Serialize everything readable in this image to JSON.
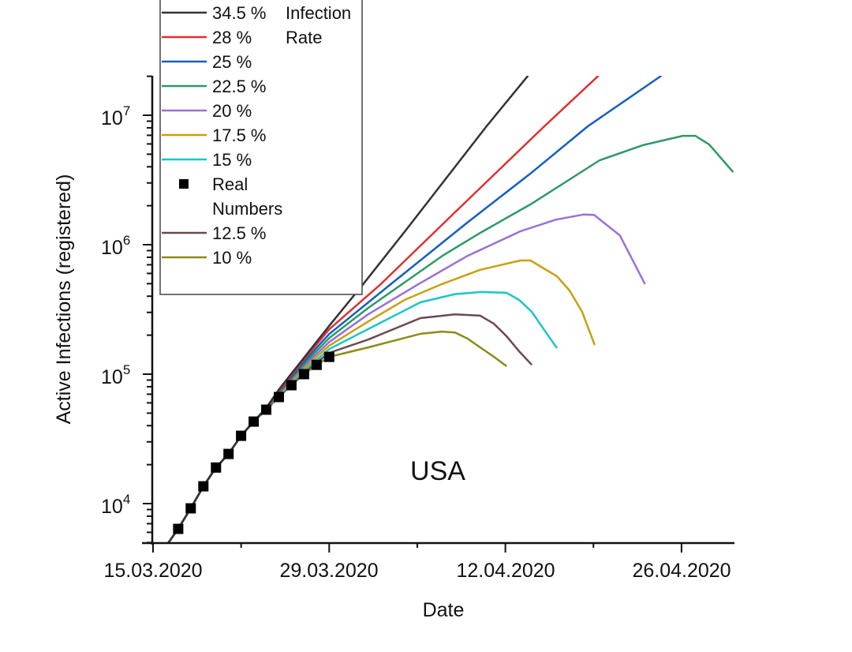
{
  "chart_data": {
    "type": "line",
    "title": "",
    "annotation": "USA",
    "xlabel": "Date",
    "ylabel": "Active Infections (registered)",
    "yscale": "log",
    "ylim": [
      5000,
      20000000
    ],
    "x_start_date": "15.03.2020",
    "x_unit": "days since 15.03.2020",
    "xlim": [
      0,
      46
    ],
    "x_major_ticks": [
      {
        "day": 0,
        "label": "15.03.2020"
      },
      {
        "day": 14,
        "label": "29.03.2020"
      },
      {
        "day": 28,
        "label": "12.04.2020"
      },
      {
        "day": 42,
        "label": "26.04.2020"
      }
    ],
    "x_minor_tick_days": [
      7,
      21,
      35
    ],
    "y_major_ticks": [
      {
        "value": 10000,
        "base": "10",
        "exp": "4"
      },
      {
        "value": 100000,
        "base": "10",
        "exp": "5"
      },
      {
        "value": 1000000,
        "base": "10",
        "exp": "6"
      },
      {
        "value": 10000000,
        "base": "10",
        "exp": "7"
      }
    ],
    "grid": false,
    "legend": {
      "placement": "top-left",
      "title": [
        "Infection",
        "Rate"
      ],
      "entries": [
        {
          "label": "34.5 %",
          "kind": "line",
          "color": "#333333"
        },
        {
          "label": "28 %",
          "kind": "line",
          "color": "#E03030"
        },
        {
          "label": "25 %",
          "kind": "line",
          "color": "#1560BD"
        },
        {
          "label": "22.5 %",
          "kind": "line",
          "color": "#2E9A63"
        },
        {
          "label": "20 %",
          "kind": "line",
          "color": "#9A6FD8"
        },
        {
          "label": "17.5 %",
          "kind": "line",
          "color": "#C9A010"
        },
        {
          "label": "15 %",
          "kind": "line",
          "color": "#1AC5C8"
        },
        {
          "label": "Real",
          "label2": "Numbers",
          "kind": "marker",
          "color": "#000000"
        },
        {
          "label": "12.5 %",
          "kind": "line",
          "color": "#6B4A4E"
        },
        {
          "label": "10 %",
          "kind": "line",
          "color": "#8C8C14"
        }
      ]
    },
    "series": [
      {
        "name": "10 %",
        "color": "#8C8C14",
        "points": [
          [
            1.2,
            4950
          ],
          [
            2,
            6400
          ],
          [
            3,
            9200
          ],
          [
            4,
            13600
          ],
          [
            5,
            19000
          ],
          [
            6,
            24200
          ],
          [
            7,
            33400
          ],
          [
            8,
            43000
          ],
          [
            9,
            53200
          ],
          [
            10,
            66600
          ],
          [
            11,
            82200
          ],
          [
            12,
            100000
          ],
          [
            13,
            118000
          ],
          [
            14,
            136000
          ],
          [
            17.1,
            161000
          ],
          [
            21.25,
            205000
          ],
          [
            22.95,
            213000
          ],
          [
            24.0,
            210000
          ],
          [
            25.0,
            188000
          ],
          [
            26.0,
            161000
          ],
          [
            27.1,
            136000
          ],
          [
            28.1,
            115000
          ]
        ]
      },
      {
        "name": "12.5 %",
        "color": "#6B4A4E",
        "points": [
          [
            1.2,
            4950
          ],
          [
            2,
            6400
          ],
          [
            3,
            9200
          ],
          [
            4,
            13600
          ],
          [
            5,
            19000
          ],
          [
            6,
            24200
          ],
          [
            7,
            33400
          ],
          [
            8,
            43000
          ],
          [
            9,
            53200
          ],
          [
            10,
            67000
          ],
          [
            11,
            83500
          ],
          [
            12,
            102000
          ],
          [
            13,
            123000
          ],
          [
            14,
            146000
          ],
          [
            17.1,
            185000
          ],
          [
            21.25,
            271000
          ],
          [
            24.0,
            290000
          ],
          [
            26.0,
            283000
          ],
          [
            27.1,
            245000
          ],
          [
            28.1,
            196000
          ],
          [
            29.1,
            150000
          ],
          [
            30.1,
            118000
          ]
        ]
      },
      {
        "name": "15 %",
        "color": "#1AC5C8",
        "points": [
          [
            1.2,
            4950
          ],
          [
            2,
            6400
          ],
          [
            3,
            9200
          ],
          [
            4,
            13600
          ],
          [
            5,
            19000
          ],
          [
            6,
            24200
          ],
          [
            7,
            33400
          ],
          [
            8,
            43000
          ],
          [
            9,
            53400
          ],
          [
            10,
            68000
          ],
          [
            11,
            85500
          ],
          [
            12,
            106000
          ],
          [
            13,
            129000
          ],
          [
            14,
            156000
          ],
          [
            17.1,
            223000
          ],
          [
            21.25,
            359000
          ],
          [
            24.0,
            415000
          ],
          [
            26.1,
            431000
          ],
          [
            28.1,
            425000
          ],
          [
            29.1,
            374000
          ],
          [
            30.1,
            303000
          ],
          [
            31.1,
            219000
          ],
          [
            32.1,
            159000
          ]
        ]
      },
      {
        "name": "17.5 %",
        "color": "#C9A010",
        "points": [
          [
            1.2,
            4950
          ],
          [
            2,
            6400
          ],
          [
            3,
            9200
          ],
          [
            4,
            13600
          ],
          [
            5,
            19000
          ],
          [
            6,
            24200
          ],
          [
            7,
            33400
          ],
          [
            8,
            43000
          ],
          [
            9,
            53600
          ],
          [
            10,
            69000
          ],
          [
            11,
            88000
          ],
          [
            12,
            110000
          ],
          [
            13,
            136000
          ],
          [
            14,
            166000
          ],
          [
            17.1,
            255000
          ],
          [
            20.0,
            375000
          ],
          [
            22.95,
            496000
          ],
          [
            26.0,
            640000
          ],
          [
            29.2,
            755000
          ],
          [
            30.0,
            755000
          ],
          [
            32.1,
            570000
          ],
          [
            33.1,
            443000
          ],
          [
            34.1,
            303000
          ],
          [
            35.1,
            168000
          ]
        ]
      },
      {
        "name": "20 %",
        "color": "#9A6FD8",
        "points": [
          [
            1.2,
            4950
          ],
          [
            2,
            6400
          ],
          [
            3,
            9200
          ],
          [
            4,
            13600
          ],
          [
            5,
            19000
          ],
          [
            6,
            24200
          ],
          [
            7,
            33400
          ],
          [
            8,
            43000
          ],
          [
            9,
            53800
          ],
          [
            10,
            70000
          ],
          [
            11,
            90500
          ],
          [
            12,
            115000
          ],
          [
            13,
            143000
          ],
          [
            14,
            177000
          ],
          [
            17.1,
            290000
          ],
          [
            21.1,
            496000
          ],
          [
            25.0,
            820000
          ],
          [
            29.2,
            1270000
          ],
          [
            32.0,
            1560000
          ],
          [
            34.2,
            1710000
          ],
          [
            35.05,
            1700000
          ],
          [
            37.1,
            1180000
          ],
          [
            39.1,
            496000
          ]
        ]
      },
      {
        "name": "22.5 %",
        "color": "#2E9A63",
        "points": [
          [
            1.2,
            4950
          ],
          [
            2,
            6400
          ],
          [
            3,
            9200
          ],
          [
            4,
            13600
          ],
          [
            5,
            19000
          ],
          [
            6,
            24200
          ],
          [
            7,
            33400
          ],
          [
            8,
            43000
          ],
          [
            9,
            54000
          ],
          [
            10,
            71000
          ],
          [
            11,
            93000
          ],
          [
            12,
            119000
          ],
          [
            13,
            151000
          ],
          [
            14,
            190000
          ],
          [
            17.1,
            325000
          ],
          [
            19.8,
            496000
          ],
          [
            23.0,
            820000
          ],
          [
            26.1,
            1250000
          ],
          [
            30.0,
            2050000
          ],
          [
            35.5,
            4490000
          ],
          [
            39.0,
            5900000
          ],
          [
            42.1,
            6930000
          ],
          [
            43.1,
            6930000
          ],
          [
            44.2,
            5940000
          ],
          [
            46.1,
            3640000
          ]
        ]
      },
      {
        "name": "25 %",
        "color": "#1560BD",
        "points": [
          [
            1.2,
            4950
          ],
          [
            2,
            6400
          ],
          [
            3,
            9200
          ],
          [
            4,
            13600
          ],
          [
            5,
            19000
          ],
          [
            6,
            24200
          ],
          [
            7,
            33400
          ],
          [
            8,
            43000
          ],
          [
            9,
            54200
          ],
          [
            10,
            72000
          ],
          [
            11,
            95000
          ],
          [
            12,
            124000
          ],
          [
            13,
            160000
          ],
          [
            14,
            204000
          ],
          [
            18.9,
            496000
          ],
          [
            25.0,
            1490000
          ],
          [
            30.0,
            3550000
          ],
          [
            34.55,
            8220000
          ],
          [
            40.4,
            20200000
          ]
        ]
      },
      {
        "name": "28 %",
        "color": "#E03030",
        "points": [
          [
            1.2,
            4950
          ],
          [
            2,
            6400
          ],
          [
            3,
            9200
          ],
          [
            4,
            13600
          ],
          [
            5,
            19000
          ],
          [
            6,
            24200
          ],
          [
            7,
            33400
          ],
          [
            8,
            43000
          ],
          [
            9,
            54500
          ],
          [
            10,
            73500
          ],
          [
            11,
            98000
          ],
          [
            12,
            130000
          ],
          [
            13,
            170000
          ],
          [
            14,
            222000
          ],
          [
            18.1,
            496000
          ],
          [
            24.0,
            1780000
          ],
          [
            31.1,
            8220000
          ],
          [
            35.4,
            20200000
          ]
        ]
      },
      {
        "name": "34.5 %",
        "color": "#333333",
        "points": [
          [
            1.2,
            4950
          ],
          [
            2,
            6400
          ],
          [
            3,
            9200
          ],
          [
            4,
            13600
          ],
          [
            5,
            19000
          ],
          [
            6,
            24200
          ],
          [
            7,
            33400
          ],
          [
            8,
            43000
          ],
          [
            9,
            55000
          ],
          [
            10,
            76000
          ],
          [
            11,
            101000
          ],
          [
            12,
            134000
          ],
          [
            13,
            178000
          ],
          [
            14,
            236000
          ],
          [
            16.7,
            496000
          ],
          [
            20.0,
            1260000
          ],
          [
            26.5,
            8220000
          ],
          [
            29.8,
            20200000
          ]
        ]
      },
      {
        "name": "Real Numbers",
        "kind": "scatter",
        "color": "#000000",
        "points": [
          [
            2,
            6380
          ],
          [
            3,
            9190
          ],
          [
            4,
            13600
          ],
          [
            5,
            19000
          ],
          [
            6,
            24200
          ],
          [
            7,
            33400
          ],
          [
            8,
            43000
          ],
          [
            9,
            53200
          ],
          [
            10,
            66600
          ],
          [
            11,
            82200
          ],
          [
            12,
            100000
          ],
          [
            13,
            118000
          ],
          [
            14,
            136000
          ]
        ]
      }
    ]
  }
}
